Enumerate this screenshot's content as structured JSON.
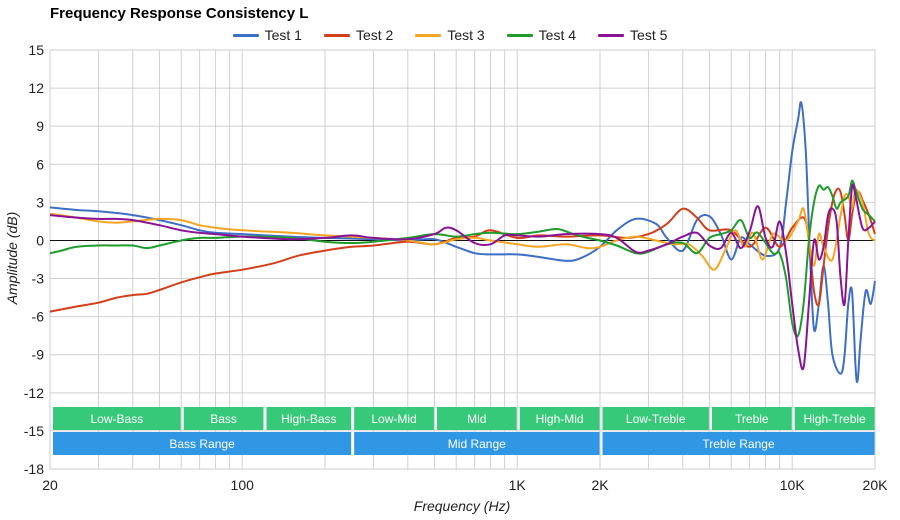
{
  "chart_data": {
    "type": "line",
    "title": "Frequency Response Consistency L",
    "xlabel": "Frequency (Hz)",
    "ylabel": "Amplitude (dB)",
    "xscale": "log",
    "xlim": [
      20,
      20000
    ],
    "ylim": [
      -18,
      15
    ],
    "yticks": [
      15,
      12,
      9,
      6,
      3,
      0,
      -3,
      -6,
      -9,
      -12,
      -15,
      -18
    ],
    "xticks": [
      {
        "value": 20,
        "label": "20"
      },
      {
        "value": 100,
        "label": "100"
      },
      {
        "value": 1000,
        "label": "1K"
      },
      {
        "value": 2000,
        "label": "2K"
      },
      {
        "value": 10000,
        "label": "10K"
      },
      {
        "value": 20000,
        "label": "20K"
      }
    ],
    "legend_position": "top-center",
    "series": [
      {
        "name": "Test 1",
        "color": "#3d6fc6",
        "points": [
          [
            20,
            2.6
          ],
          [
            25,
            2.4
          ],
          [
            30,
            2.3
          ],
          [
            40,
            2.0
          ],
          [
            50,
            1.6
          ],
          [
            60,
            1.2
          ],
          [
            70,
            0.8
          ],
          [
            80,
            0.6
          ],
          [
            100,
            0.5
          ],
          [
            150,
            0.3
          ],
          [
            200,
            0.2
          ],
          [
            300,
            0.1
          ],
          [
            400,
            0.0
          ],
          [
            500,
            0.1
          ],
          [
            600,
            -0.5
          ],
          [
            700,
            -1.0
          ],
          [
            800,
            -1.1
          ],
          [
            1000,
            -1.1
          ],
          [
            1200,
            -1.3
          ],
          [
            1500,
            -1.6
          ],
          [
            1700,
            -1.4
          ],
          [
            2000,
            -0.5
          ],
          [
            2300,
            0.8
          ],
          [
            2700,
            1.7
          ],
          [
            3200,
            1.3
          ],
          [
            3500,
            0.2
          ],
          [
            4000,
            -0.8
          ],
          [
            4500,
            1.6
          ],
          [
            5000,
            1.9
          ],
          [
            5500,
            0.5
          ],
          [
            6000,
            -1.5
          ],
          [
            6500,
            0.2
          ],
          [
            7000,
            -0.3
          ],
          [
            8000,
            -1.2
          ],
          [
            9000,
            -0.6
          ],
          [
            9500,
            3.0
          ],
          [
            10000,
            7.0
          ],
          [
            10500,
            9.5
          ],
          [
            10800,
            10.8
          ],
          [
            11200,
            7.0
          ],
          [
            11600,
            -1.0
          ],
          [
            12000,
            -7.0
          ],
          [
            12500,
            -5.0
          ],
          [
            13000,
            -2.0
          ],
          [
            13500,
            -5.0
          ],
          [
            14000,
            -9.0
          ],
          [
            15000,
            -10.5
          ],
          [
            15500,
            -9.0
          ],
          [
            16000,
            -5.0
          ],
          [
            16500,
            -4.0
          ],
          [
            17000,
            -10.0
          ],
          [
            17300,
            -11.0
          ],
          [
            17700,
            -8.0
          ],
          [
            18500,
            -4.0
          ],
          [
            19300,
            -5.0
          ],
          [
            20000,
            -3.2
          ]
        ]
      },
      {
        "name": "Test 2",
        "color": "#d33f1a",
        "points": [
          [
            20,
            -5.6
          ],
          [
            25,
            -5.2
          ],
          [
            30,
            -4.9
          ],
          [
            35,
            -4.5
          ],
          [
            40,
            -4.3
          ],
          [
            45,
            -4.2
          ],
          [
            50,
            -3.9
          ],
          [
            60,
            -3.3
          ],
          [
            70,
            -2.9
          ],
          [
            80,
            -2.6
          ],
          [
            100,
            -2.3
          ],
          [
            130,
            -1.8
          ],
          [
            160,
            -1.2
          ],
          [
            200,
            -0.8
          ],
          [
            250,
            -0.5
          ],
          [
            300,
            -0.4
          ],
          [
            400,
            -0.1
          ],
          [
            500,
            -0.3
          ],
          [
            600,
            0.2
          ],
          [
            700,
            0.3
          ],
          [
            800,
            0.8
          ],
          [
            1000,
            0.2
          ],
          [
            1200,
            0.4
          ],
          [
            1500,
            0.3
          ],
          [
            2000,
            0.4
          ],
          [
            2500,
            0.2
          ],
          [
            3000,
            0.5
          ],
          [
            3500,
            1.3
          ],
          [
            4000,
            2.5
          ],
          [
            4500,
            1.8
          ],
          [
            5000,
            0.8
          ],
          [
            6000,
            0.8
          ],
          [
            7000,
            -0.5
          ],
          [
            8000,
            1.0
          ],
          [
            9000,
            -0.5
          ],
          [
            10000,
            1.0
          ],
          [
            11000,
            1.8
          ],
          [
            11500,
            0.0
          ],
          [
            12000,
            -4.0
          ],
          [
            12500,
            -5.0
          ],
          [
            13000,
            -2.0
          ],
          [
            13500,
            1.0
          ],
          [
            14000,
            3.0
          ],
          [
            14500,
            4.0
          ],
          [
            15000,
            3.8
          ],
          [
            15500,
            2.0
          ],
          [
            16000,
            0.0
          ],
          [
            16500,
            2.0
          ],
          [
            17000,
            3.5
          ],
          [
            17500,
            3.8
          ],
          [
            18000,
            3.2
          ],
          [
            19000,
            2.0
          ],
          [
            20000,
            0.5
          ]
        ]
      },
      {
        "name": "Test 3",
        "color": "#f5a524",
        "points": [
          [
            20,
            2.1
          ],
          [
            25,
            1.8
          ],
          [
            30,
            1.5
          ],
          [
            35,
            1.4
          ],
          [
            40,
            1.5
          ],
          [
            50,
            1.7
          ],
          [
            60,
            1.6
          ],
          [
            70,
            1.2
          ],
          [
            80,
            1.0
          ],
          [
            100,
            0.8
          ],
          [
            150,
            0.6
          ],
          [
            200,
            0.4
          ],
          [
            300,
            0.2
          ],
          [
            400,
            0.0
          ],
          [
            500,
            -0.3
          ],
          [
            600,
            0.1
          ],
          [
            700,
            0.2
          ],
          [
            800,
            0.0
          ],
          [
            1000,
            -0.3
          ],
          [
            1200,
            -0.5
          ],
          [
            1500,
            -0.3
          ],
          [
            1800,
            -0.6
          ],
          [
            2000,
            -0.5
          ],
          [
            2300,
            0.0
          ],
          [
            2700,
            0.3
          ],
          [
            3200,
            0.0
          ],
          [
            3700,
            -0.3
          ],
          [
            4200,
            -0.3
          ],
          [
            4700,
            -1.2
          ],
          [
            5200,
            -2.3
          ],
          [
            5700,
            -0.8
          ],
          [
            6200,
            0.8
          ],
          [
            6700,
            -0.5
          ],
          [
            7200,
            0.6
          ],
          [
            7800,
            -1.5
          ],
          [
            8500,
            0.5
          ],
          [
            9500,
            0.0
          ],
          [
            10500,
            1.5
          ],
          [
            11000,
            2.5
          ],
          [
            11500,
            0.0
          ],
          [
            12000,
            -2.0
          ],
          [
            12500,
            0.5
          ],
          [
            13000,
            -0.5
          ],
          [
            14000,
            -1.5
          ],
          [
            15000,
            2.0
          ],
          [
            15500,
            3.5
          ],
          [
            16000,
            3.5
          ],
          [
            16500,
            2.5
          ],
          [
            17000,
            4.0
          ],
          [
            18000,
            3.0
          ],
          [
            19000,
            0.5
          ],
          [
            20000,
            0.0
          ]
        ]
      },
      {
        "name": "Test 4",
        "color": "#1f9c2b",
        "points": [
          [
            20,
            -1.0
          ],
          [
            22,
            -0.8
          ],
          [
            25,
            -0.5
          ],
          [
            30,
            -0.4
          ],
          [
            35,
            -0.4
          ],
          [
            40,
            -0.4
          ],
          [
            45,
            -0.6
          ],
          [
            50,
            -0.4
          ],
          [
            60,
            0.0
          ],
          [
            70,
            0.2
          ],
          [
            80,
            0.2
          ],
          [
            100,
            0.3
          ],
          [
            150,
            0.2
          ],
          [
            200,
            -0.1
          ],
          [
            250,
            -0.2
          ],
          [
            300,
            -0.1
          ],
          [
            400,
            0.2
          ],
          [
            500,
            0.5
          ],
          [
            600,
            0.3
          ],
          [
            700,
            0.5
          ],
          [
            800,
            0.6
          ],
          [
            1000,
            0.5
          ],
          [
            1200,
            0.7
          ],
          [
            1400,
            0.9
          ],
          [
            1600,
            0.5
          ],
          [
            1800,
            0.2
          ],
          [
            2000,
            0.0
          ],
          [
            2300,
            -0.4
          ],
          [
            2700,
            -1.0
          ],
          [
            3000,
            -0.9
          ],
          [
            3500,
            -0.3
          ],
          [
            4000,
            -0.2
          ],
          [
            4500,
            -1.0
          ],
          [
            5000,
            0.2
          ],
          [
            5500,
            0.5
          ],
          [
            6000,
            0.8
          ],
          [
            6500,
            1.6
          ],
          [
            7000,
            0.2
          ],
          [
            7500,
            0.6
          ],
          [
            8500,
            -1.0
          ],
          [
            9000,
            -1.0
          ],
          [
            9500,
            -3.0
          ],
          [
            10000,
            -6.5
          ],
          [
            10500,
            -7.5
          ],
          [
            11000,
            -5.0
          ],
          [
            11500,
            0.0
          ],
          [
            12000,
            3.0
          ],
          [
            12500,
            4.3
          ],
          [
            13000,
            4.0
          ],
          [
            13500,
            4.2
          ],
          [
            14000,
            3.5
          ],
          [
            14500,
            2.5
          ],
          [
            15000,
            3.0
          ],
          [
            16000,
            3.5
          ],
          [
            16500,
            4.7
          ],
          [
            17000,
            4.0
          ],
          [
            18000,
            2.5
          ],
          [
            19000,
            2.0
          ],
          [
            20000,
            1.5
          ]
        ]
      },
      {
        "name": "Test 5",
        "color": "#8a1296",
        "points": [
          [
            20,
            2.0
          ],
          [
            25,
            1.8
          ],
          [
            30,
            1.7
          ],
          [
            35,
            1.7
          ],
          [
            40,
            1.6
          ],
          [
            50,
            1.2
          ],
          [
            60,
            0.8
          ],
          [
            70,
            0.6
          ],
          [
            80,
            0.5
          ],
          [
            100,
            0.3
          ],
          [
            150,
            0.1
          ],
          [
            200,
            0.2
          ],
          [
            250,
            0.4
          ],
          [
            300,
            0.2
          ],
          [
            400,
            0.1
          ],
          [
            500,
            0.5
          ],
          [
            550,
            1.0
          ],
          [
            600,
            0.8
          ],
          [
            700,
            -0.2
          ],
          [
            800,
            -0.3
          ],
          [
            900,
            0.4
          ],
          [
            1000,
            0.4
          ],
          [
            1200,
            0.3
          ],
          [
            1500,
            0.5
          ],
          [
            2000,
            0.5
          ],
          [
            2300,
            0.2
          ],
          [
            2700,
            -0.9
          ],
          [
            3000,
            -0.8
          ],
          [
            3500,
            -0.3
          ],
          [
            4000,
            0.3
          ],
          [
            4500,
            0.6
          ],
          [
            5000,
            -0.4
          ],
          [
            5500,
            -0.6
          ],
          [
            6000,
            0.6
          ],
          [
            6500,
            -0.6
          ],
          [
            7000,
            0.7
          ],
          [
            7500,
            2.7
          ],
          [
            8000,
            0.2
          ],
          [
            8500,
            -0.5
          ],
          [
            9000,
            1.5
          ],
          [
            9500,
            -1.0
          ],
          [
            10000,
            -5.0
          ],
          [
            10500,
            -8.5
          ],
          [
            11000,
            -10.0
          ],
          [
            11500,
            -5.0
          ],
          [
            12000,
            0.0
          ],
          [
            12500,
            -1.5
          ],
          [
            13000,
            -0.5
          ],
          [
            13500,
            2.0
          ],
          [
            14000,
            2.5
          ],
          [
            14500,
            1.5
          ],
          [
            15000,
            -3.0
          ],
          [
            15500,
            -5.0
          ],
          [
            16000,
            0.0
          ],
          [
            16500,
            4.2
          ],
          [
            17000,
            3.5
          ],
          [
            18000,
            1.0
          ],
          [
            19000,
            1.0
          ],
          [
            20000,
            1.5
          ]
        ]
      }
    ],
    "bands": [
      {
        "row": 1,
        "label": "Low-Bass",
        "from": 20,
        "to": 60
      },
      {
        "row": 1,
        "label": "Bass",
        "from": 60,
        "to": 120
      },
      {
        "row": 1,
        "label": "High-Bass",
        "from": 120,
        "to": 250
      },
      {
        "row": 1,
        "label": "Low-Mid",
        "from": 250,
        "to": 500
      },
      {
        "row": 1,
        "label": "Mid",
        "from": 500,
        "to": 1000
      },
      {
        "row": 1,
        "label": "High-Mid",
        "from": 1000,
        "to": 2000
      },
      {
        "row": 1,
        "label": "Low-Treble",
        "from": 2000,
        "to": 5000
      },
      {
        "row": 1,
        "label": "Treble",
        "from": 5000,
        "to": 10000
      },
      {
        "row": 1,
        "label": "High-Treble",
        "from": 10000,
        "to": 20000
      },
      {
        "row": 2,
        "label": "Bass Range",
        "from": 20,
        "to": 250
      },
      {
        "row": 2,
        "label": "Mid Range",
        "from": 250,
        "to": 2000
      },
      {
        "row": 2,
        "label": "Treble Range",
        "from": 2000,
        "to": 20000
      }
    ],
    "band_colors": {
      "row1": "#37c97a",
      "row2": "#2f97e4"
    },
    "grid": true
  }
}
